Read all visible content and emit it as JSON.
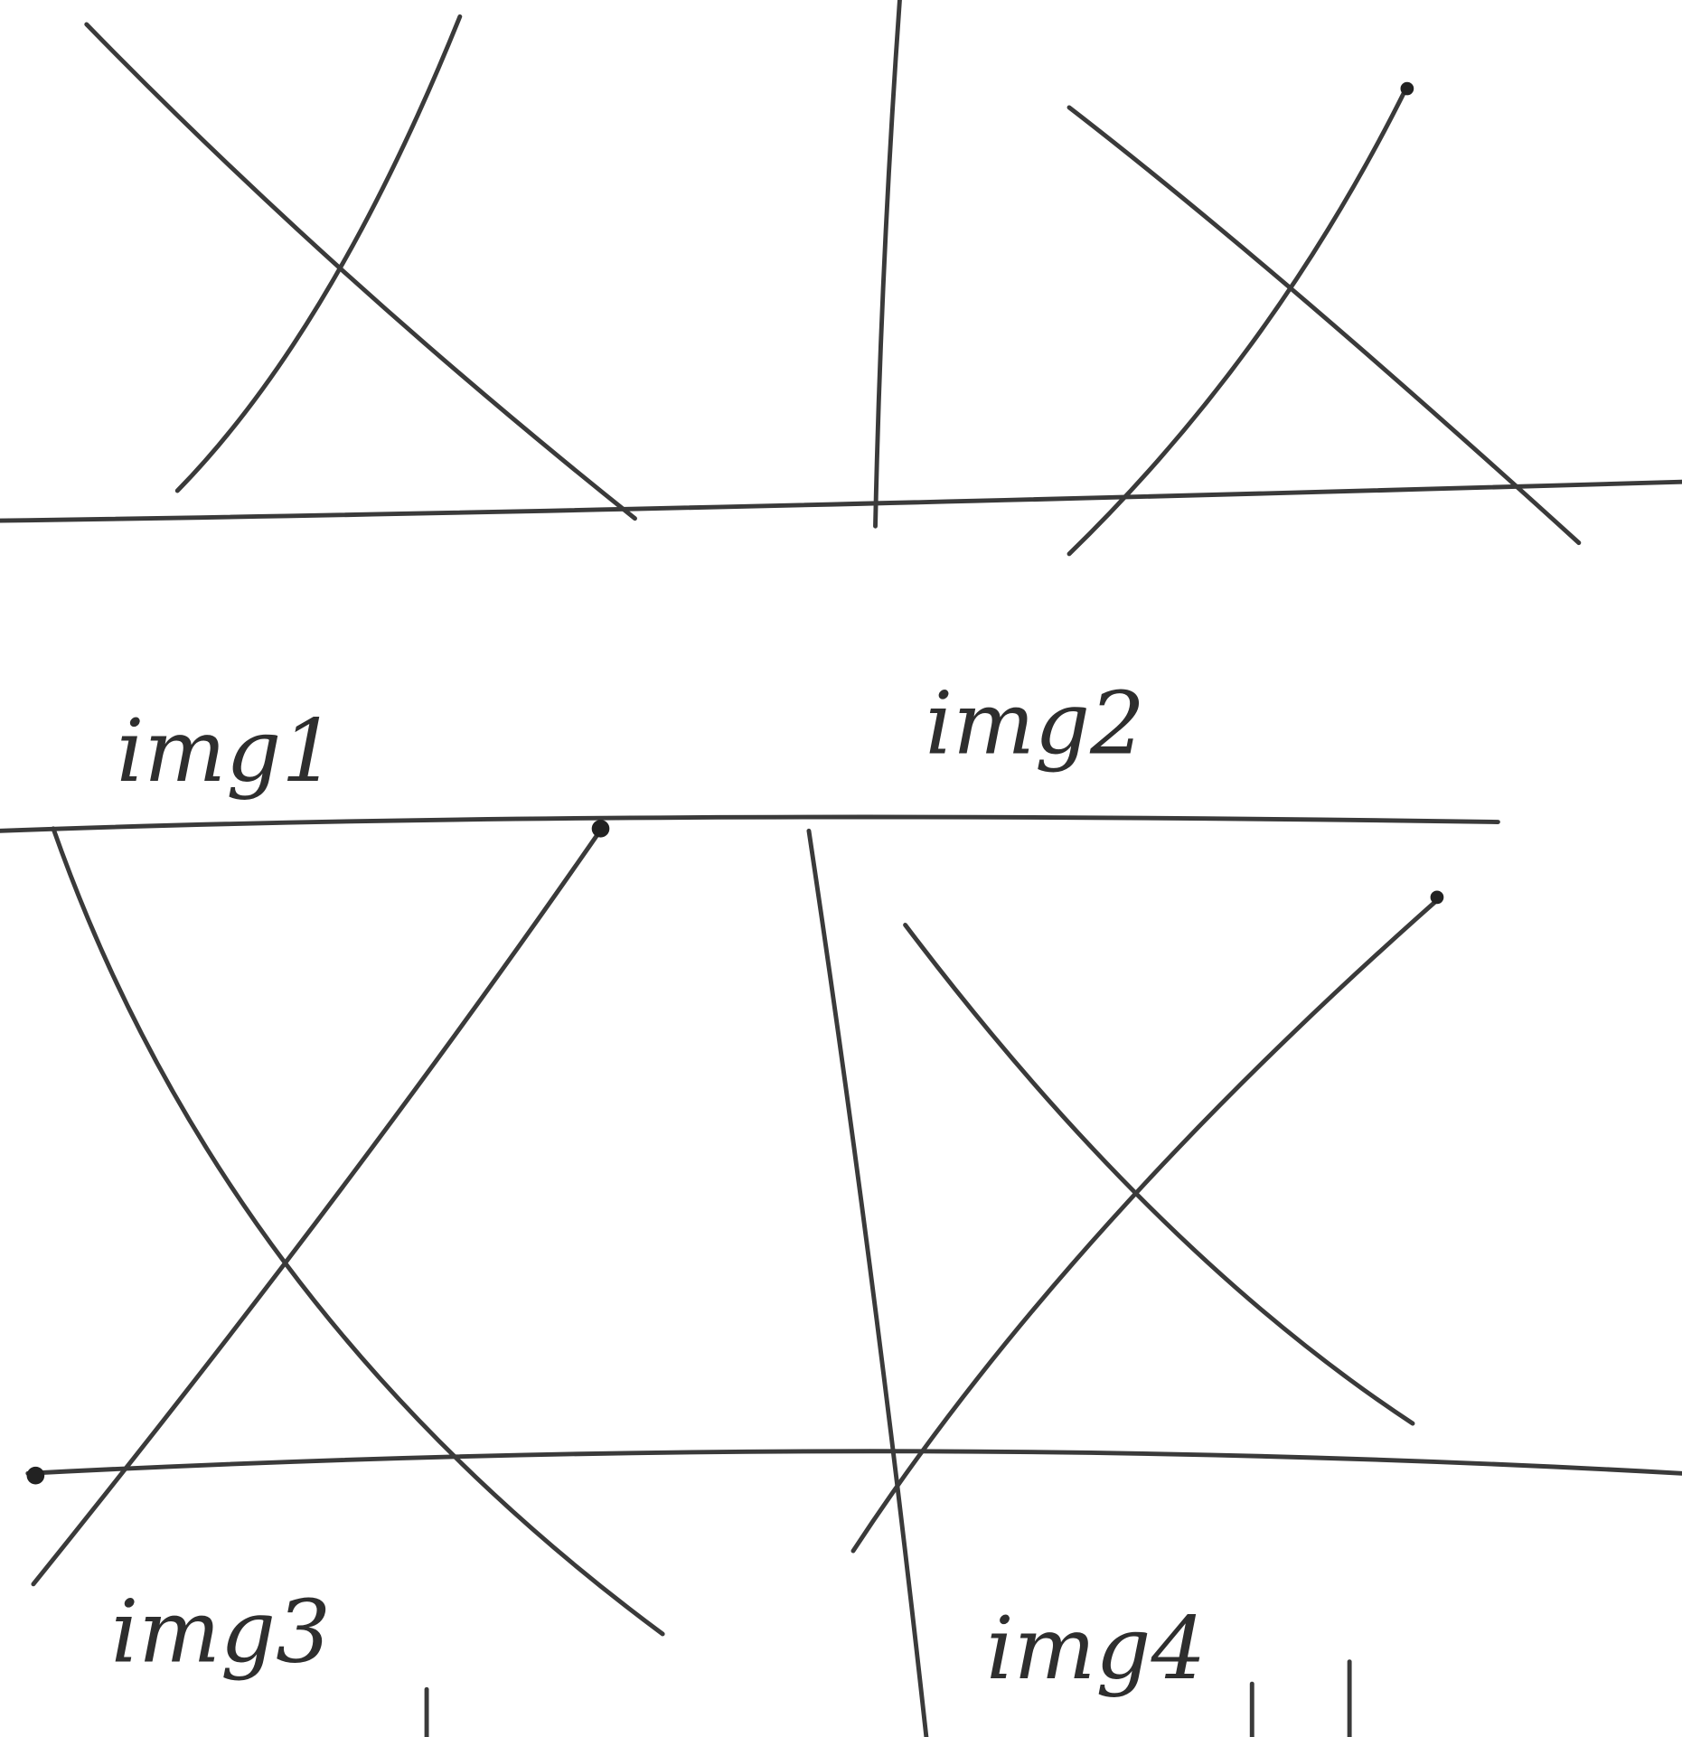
{
  "panels": [
    {
      "label": "img1"
    },
    {
      "label": "img2"
    },
    {
      "label": "img3"
    },
    {
      "label": "img4"
    }
  ]
}
